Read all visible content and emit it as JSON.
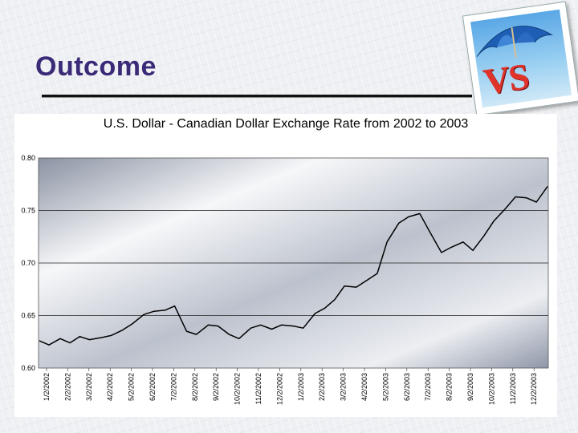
{
  "slide": {
    "title": "Outcome",
    "logo_letters": "VS",
    "logo_icon": "beach-umbrella-logo-icon"
  },
  "chart_data": {
    "type": "line",
    "title": "U.S. Dollar - Canadian Dollar Exchange Rate from 2002 to 2003",
    "xlabel": "",
    "ylabel": "",
    "ylim": [
      0.6,
      0.8
    ],
    "yticks": [
      "0.60",
      "0.65",
      "0.70",
      "0.75",
      "0.80"
    ],
    "xticks": [
      "1/2/2002",
      "2/2/2002",
      "3/2/2002",
      "4/2/2002",
      "5/2/2002",
      "6/2/2002",
      "7/2/2002",
      "8/2/2002",
      "9/2/2002",
      "10/2/2002",
      "11/2/2002",
      "12/2/2002",
      "1/2/2003",
      "2/2/2003",
      "3/2/2003",
      "4/2/2003",
      "5/2/2003",
      "6/2/2003",
      "7/2/2003",
      "8/2/2003",
      "9/2/2003",
      "10/2/2003",
      "11/2/2003",
      "12/2/2003"
    ],
    "grid": true,
    "legend": "none",
    "series": [
      {
        "x": [
          "2002-01-02",
          "2002-01-16",
          "2002-02-01",
          "2002-02-15",
          "2002-03-01",
          "2002-03-15",
          "2002-04-01",
          "2002-04-15",
          "2002-05-01",
          "2002-05-15",
          "2002-06-01",
          "2002-06-15",
          "2002-07-01",
          "2002-07-15",
          "2002-08-01",
          "2002-08-15",
          "2002-09-01",
          "2002-09-15",
          "2002-10-01",
          "2002-10-15",
          "2002-11-01",
          "2002-11-15",
          "2002-12-01",
          "2002-12-15",
          "2003-01-01",
          "2003-01-15",
          "2003-02-01",
          "2003-02-15",
          "2003-03-01",
          "2003-03-15",
          "2003-04-01",
          "2003-04-15",
          "2003-05-01",
          "2003-05-15",
          "2003-06-01",
          "2003-06-15",
          "2003-07-01",
          "2003-07-15",
          "2003-08-01",
          "2003-08-15",
          "2003-09-01",
          "2003-09-15",
          "2003-10-01",
          "2003-10-15",
          "2003-11-01",
          "2003-11-15",
          "2003-12-01",
          "2003-12-15",
          "2003-12-31"
        ],
        "values": [
          0.626,
          0.622,
          0.628,
          0.624,
          0.63,
          0.627,
          0.629,
          0.631,
          0.636,
          0.642,
          0.651,
          0.654,
          0.655,
          0.659,
          0.635,
          0.632,
          0.641,
          0.64,
          0.632,
          0.628,
          0.638,
          0.641,
          0.637,
          0.641,
          0.64,
          0.638,
          0.652,
          0.657,
          0.665,
          0.678,
          0.677,
          0.683,
          0.69,
          0.72,
          0.738,
          0.744,
          0.747,
          0.73,
          0.71,
          0.715,
          0.72,
          0.712,
          0.726,
          0.74,
          0.752,
          0.763,
          0.762,
          0.758,
          0.773
        ]
      }
    ]
  }
}
